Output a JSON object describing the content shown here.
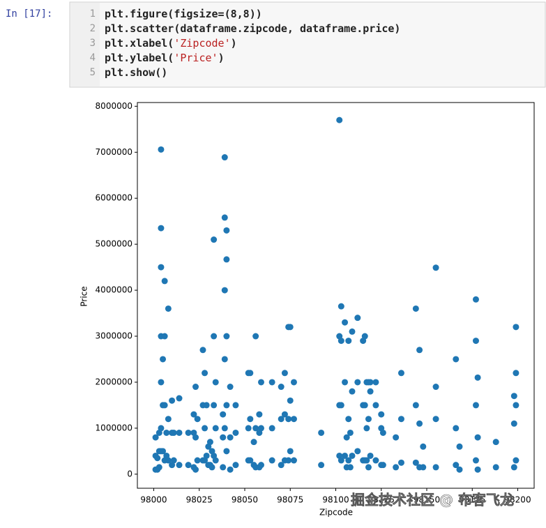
{
  "prompt": "In [17]:",
  "code": {
    "line_numbers": [
      "1",
      "2",
      "3",
      "4",
      "5"
    ],
    "lines": [
      [
        "plt.figure(figsize=(8,8))"
      ],
      [
        "plt.scatter(dataframe.zipcode, dataframe.price)"
      ],
      [
        "plt.xlabel(",
        "'Zipcode'",
        ")"
      ],
      [
        "plt.ylabel(",
        "'Price'",
        ")"
      ],
      [
        "plt.show()"
      ]
    ]
  },
  "watermark": "掘金技术社区 @ 布客飞龙",
  "chart_data": {
    "type": "scatter",
    "x_label": "Zipcode",
    "y_label": "Price",
    "color": "#1f77b4",
    "xlim": [
      97991,
      98209
    ],
    "ylim": [
      -306000,
      8081000
    ],
    "xticks": [
      98000,
      98025,
      98050,
      98075,
      98100,
      98125,
      98150,
      98175,
      98200
    ],
    "yticks": [
      0,
      1000000,
      2000000,
      3000000,
      4000000,
      5000000,
      6000000,
      7000000,
      8000000
    ],
    "x": [
      98001,
      98001,
      98001,
      98002,
      98002,
      98003,
      98003,
      98003,
      98004,
      98004,
      98004,
      98004,
      98004,
      98004,
      98004,
      98005,
      98005,
      98005,
      98006,
      98006,
      98006,
      98006,
      98007,
      98007,
      98008,
      98008,
      98008,
      98010,
      98010,
      98010,
      98011,
      98011,
      98014,
      98014,
      98014,
      98019,
      98019,
      98022,
      98022,
      98022,
      98023,
      98023,
      98023,
      98024,
      98024,
      98027,
      98027,
      98027,
      98028,
      98028,
      98028,
      98029,
      98029,
      98030,
      98030,
      98031,
      98031,
      98032,
      98032,
      98033,
      98033,
      98033,
      98033,
      98034,
      98034,
      98034,
      98038,
      98038,
      98038,
      98039,
      98039,
      98039,
      98039,
      98039,
      98040,
      98040,
      98040,
      98040,
      98040,
      98042,
      98042,
      98042,
      98045,
      98045,
      98045,
      98052,
      98052,
      98052,
      98053,
      98053,
      98053,
      98055,
      98055,
      98056,
      98056,
      98056,
      98058,
      98058,
      98058,
      98059,
      98059,
      98059,
      98065,
      98065,
      98065,
      98070,
      98070,
      98070,
      98072,
      98072,
      98072,
      98074,
      98074,
      98074,
      98075,
      98075,
      98075,
      98077,
      98077,
      98077,
      98092,
      98092,
      98102,
      98102,
      98102,
      98102,
      98103,
      98103,
      98103,
      98103,
      98105,
      98105,
      98105,
      98106,
      98106,
      98107,
      98107,
      98107,
      98108,
      98108,
      98109,
      98109,
      98109,
      98112,
      98112,
      98112,
      98115,
      98115,
      98115,
      98116,
      98116,
      98116,
      98117,
      98117,
      98117,
      98118,
      98118,
      98118,
      98119,
      98119,
      98119,
      98122,
      98122,
      98122,
      98125,
      98125,
      98125,
      98126,
      98126,
      98133,
      98133,
      98136,
      98136,
      98136,
      98144,
      98144,
      98144,
      98146,
      98146,
      98146,
      98148,
      98148,
      98155,
      98155,
      98155,
      98155,
      98166,
      98166,
      98166,
      98168,
      98168,
      98177,
      98177,
      98177,
      98177,
      98178,
      98178,
      98178,
      98188,
      98188,
      98198,
      98198,
      98198,
      98199,
      98199,
      98199,
      98199
    ],
    "values": [
      100000,
      400000,
      800000,
      100000,
      350000,
      150000,
      500000,
      900000,
      500000,
      1000000,
      2000000,
      3000000,
      4500000,
      5350000,
      7060000,
      500000,
      1500000,
      2500000,
      300000,
      1500000,
      3000000,
      4200000,
      400000,
      900000,
      300000,
      1200000,
      3600000,
      200000,
      900000,
      1600000,
      300000,
      900000,
      200000,
      900000,
      1650000,
      200000,
      900000,
      150000,
      900000,
      1300000,
      100000,
      800000,
      1900000,
      300000,
      1200000,
      300000,
      1500000,
      2700000,
      300000,
      1000000,
      2200000,
      400000,
      1500000,
      200000,
      600000,
      200000,
      700000,
      150000,
      500000,
      400000,
      1500000,
      3000000,
      5100000,
      300000,
      1000000,
      2000000,
      150000,
      800000,
      1300000,
      1000000,
      2500000,
      4000000,
      5580000,
      6890000,
      500000,
      1500000,
      3000000,
      4670000,
      5300000,
      100000,
      800000,
      1900000,
      200000,
      900000,
      1500000,
      300000,
      1000000,
      2200000,
      300000,
      1200000,
      2200000,
      200000,
      700000,
      150000,
      1000000,
      3000000,
      150000,
      900000,
      1300000,
      200000,
      1000000,
      2000000,
      300000,
      1000000,
      2000000,
      200000,
      1200000,
      1900000,
      300000,
      1300000,
      2200000,
      300000,
      1200000,
      3200000,
      500000,
      1600000,
      3200000,
      300000,
      1200000,
      2000000,
      200000,
      900000,
      400000,
      1500000,
      3000000,
      7700000,
      300000,
      1500000,
      2900000,
      3650000,
      400000,
      2000000,
      3300000,
      150000,
      800000,
      300000,
      1200000,
      2900000,
      150000,
      900000,
      400000,
      1800000,
      3100000,
      500000,
      2000000,
      3400000,
      300000,
      1500000,
      2900000,
      300000,
      1500000,
      3000000,
      300000,
      1000000,
      2000000,
      150000,
      1200000,
      2000000,
      400000,
      1800000,
      2000000,
      300000,
      1500000,
      2000000,
      200000,
      1000000,
      1300000,
      200000,
      900000,
      150000,
      800000,
      250000,
      1200000,
      2200000,
      250000,
      1500000,
      3600000,
      150000,
      1100000,
      2700000,
      150000,
      600000,
      150000,
      1200000,
      1900000,
      4490000,
      200000,
      1000000,
      2500000,
      100000,
      600000,
      300000,
      1500000,
      2900000,
      3800000,
      100000,
      800000,
      2100000,
      150000,
      700000,
      150000,
      1100000,
      1700000,
      300000,
      1500000,
      2200000,
      3200000
    ]
  }
}
